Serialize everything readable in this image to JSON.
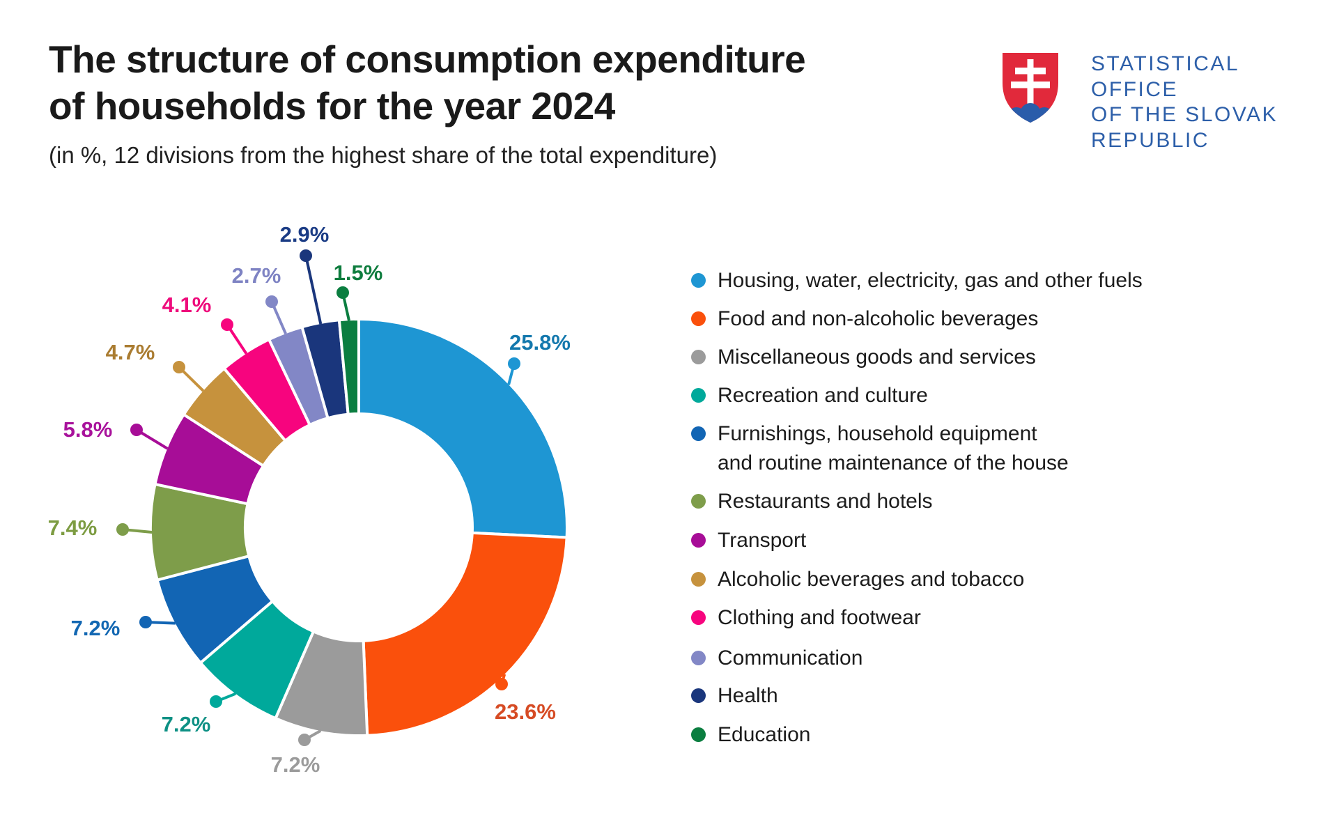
{
  "header": {
    "title_lines": [
      "The structure of consumption expenditure",
      "of households for the year 2024"
    ],
    "subtitle": "(in %, 12 divisions from the highest share of the total expenditure)"
  },
  "logo": {
    "org_lines": [
      "STATISTICAL",
      "OFFICE",
      "OF THE SLOVAK",
      "REPUBLIC"
    ],
    "text_color": "#2d5fa9",
    "shield_red": "#e1293b",
    "hill_blue": "#2a5caa",
    "stripe_colors": [
      "#d2d5d6",
      "#2a5caa",
      "#e8202f"
    ]
  },
  "chart_data": {
    "type": "pie",
    "donut": true,
    "title": "The structure of consumption expenditure of households for the year 2024",
    "subtitle": "(in %, 12 divisions from the highest share of the total expenditure)",
    "units": "%",
    "start_angle": "top",
    "direction": "clockwise",
    "inner_radius_ratio": 0.55,
    "legend_position": "right",
    "series": [
      {
        "label": "Housing, water, electricity, gas and other fuels",
        "value": 25.8,
        "pct_label": "25.8%",
        "color": "#1e96d3",
        "label_color": "#1378ad",
        "legend_lines": [
          "Housing, water, electricity, gas and other fuels"
        ]
      },
      {
        "label": "Food and non-alcoholic beverages",
        "value": 23.6,
        "pct_label": "23.6%",
        "color": "#fa500c",
        "label_color": "#d64b24",
        "legend_lines": [
          "Food and non-alcoholic beverages"
        ]
      },
      {
        "label": "Miscellaneous goods and services",
        "value": 7.2,
        "pct_label": "7.2%",
        "color": "#9b9b9b",
        "label_color": "#9b9b9b",
        "legend_lines": [
          "Miscellaneous goods and services"
        ]
      },
      {
        "label": "Recreation and culture",
        "value": 7.2,
        "pct_label": "7.2%",
        "color": "#00a99b",
        "label_color": "#0d9084",
        "legend_lines": [
          "Recreation and culture"
        ]
      },
      {
        "label": "Furnishings, household equipment and routine maintenance of the house",
        "value": 7.2,
        "pct_label": "7.2%",
        "color": "#1265b4",
        "label_color": "#1267b2",
        "legend_lines": [
          "Furnishings, household equipment",
          "and routine maintenance of the house"
        ]
      },
      {
        "label": "Restaurants and hotels",
        "value": 7.4,
        "pct_label": "7.4%",
        "color": "#7e9d4a",
        "label_color": "#7d9c42",
        "legend_lines": [
          "Restaurants and hotels"
        ]
      },
      {
        "label": "Transport",
        "value": 5.8,
        "pct_label": "5.8%",
        "color": "#a70d97",
        "label_color": "#a8129b",
        "legend_lines": [
          "Transport"
        ]
      },
      {
        "label": "Alcoholic beverages and tobacco",
        "value": 4.7,
        "pct_label": "4.7%",
        "color": "#c6923d",
        "label_color": "#aa7c31",
        "legend_lines": [
          "Alcoholic beverages and tobacco"
        ]
      },
      {
        "label": "Clothing and footwear",
        "value": 4.1,
        "pct_label": "4.1%",
        "color": "#f7047e",
        "label_color": "#ee0a7b",
        "legend_lines": [
          "Clothing and footwear"
        ]
      },
      {
        "label": "Communication",
        "value": 2.7,
        "pct_label": "2.7%",
        "color": "#8287c6",
        "label_color": "#7e83c3",
        "legend_lines": [
          "Communication"
        ]
      },
      {
        "label": "Health",
        "value": 2.9,
        "pct_label": "2.9%",
        "color": "#1a367c",
        "label_color": "#1b3c85",
        "legend_lines": [
          "Health"
        ]
      },
      {
        "label": "Education",
        "value": 1.5,
        "pct_label": "1.5%",
        "color": "#0b7e40",
        "label_color": "#0d7c3d",
        "legend_lines": [
          "Education"
        ]
      }
    ]
  }
}
